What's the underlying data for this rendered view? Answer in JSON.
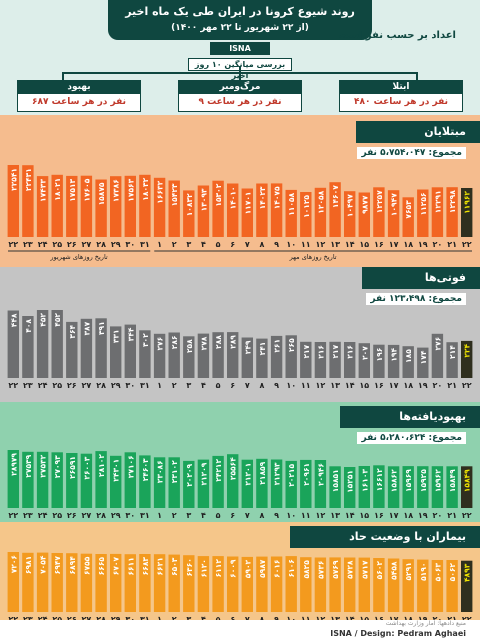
{
  "header": {
    "title": "روند شیوع کرونا در ایران طی یک ماه اخیر",
    "subtitle": "(از ۲۲ شهریور تا ۲۲ مهر ۱۴۰۰)",
    "agency": "ISNA",
    "cases_note": "اعداد بر حسب نفر است",
    "avg_label": "بررسی میانگین ۱۰ روز اخیر",
    "stats": [
      {
        "label": "ابتلا",
        "value": "۴۸۰ نفر در هر ساعت"
      },
      {
        "label": "مرگ‌ومیر",
        "value": "۹ نفر در هر ساعت"
      },
      {
        "label": "بهبود",
        "value": "۶۸۷ نفر در هر ساعت"
      }
    ]
  },
  "accent": {
    "dark": "#0f4740",
    "cases": "#f5bc8e",
    "deaths": "#b8b8b8",
    "recovered": "#8fd1ae",
    "hosp": "#f5c68a",
    "highlight": "#3a3a1a"
  },
  "sections": [
    {
      "title": "مبتلایان",
      "total": "مجموع: ۵،۷۵۴،۰۴۷ نفر",
      "axis_label_left": "تاریخ روزهای شهریور",
      "axis_label_right": "تاریخ روزهای مهر",
      "bar_color": "#f26522",
      "band_color": "#f5bc8e"
    },
    {
      "title": "فوتی‌ها",
      "total": "مجموع: ۱۲۳،۴۹۸ نفر",
      "bar_color": "#6d6e70",
      "band_color": "#c4c4c4"
    },
    {
      "title": "بهبودیافته‌ها",
      "total": "مجموع: ۵،۲۸۰،۶۲۴ نفر",
      "bar_color": "#1aa45a",
      "band_color": "#8fd1ae"
    },
    {
      "title": "بیماران با وضعیت حاد",
      "bar_color": "#f39a1e",
      "band_color": "#f5c68a"
    }
  ],
  "footer": {
    "source": "منبع دادهها: آمار وزارت بهداشت",
    "credit": "ISNA / Design: Pedram Aghaei"
  },
  "chart_data": [
    {
      "type": "bar",
      "title": "مبتلایان",
      "categories": [
        "۲۲",
        "۲۳",
        "۲۴",
        "۲۵",
        "۲۶",
        "۲۷",
        "۲۸",
        "۲۹",
        "۳۰",
        "۳۱",
        "۱",
        "۲",
        "۳",
        "۴",
        "۵",
        "۶",
        "۷",
        "۸",
        "۹",
        "۱۰",
        "۱۱",
        "۱۲",
        "۱۳",
        "۱۴",
        "۱۵",
        "۱۶",
        "۱۷",
        "۱۸",
        "۱۹",
        "۲۰",
        "۲۱",
        "۲۲"
      ],
      "values": [
        22541,
        22431,
        17433,
        18021,
        17513,
        17605,
        15875,
        17386,
        17563,
        18032,
        16632,
        15423,
        10832,
        13093,
        15302,
        14010,
        11701,
        14023,
        14075,
        11058,
        10125,
        12058,
        14607,
        10497,
        9877,
        12257,
        10947,
        7653,
        11256,
        12291,
        12298,
        11962
      ],
      "labels": [
        "۲۲۵۴۱",
        "۲۲۴۳۱",
        "۱۷۴۳۳",
        "۱۸۰۲۱",
        "۱۷۵۱۳",
        "۱۷۶۰۵",
        "۱۵۸۷۵",
        "۱۷۳۸۶",
        "۱۷۵۶۳",
        "۱۸۰۳۲",
        "۱۶۶۳۲",
        "۱۵۴۲۳",
        "۱۰۸۳۲",
        "۱۳۰۹۳",
        "۱۵۳۰۲",
        "۱۴۰۱۰",
        "۱۱۷۰۱",
        "۱۴۰۲۳",
        "۱۴۰۷۵",
        "۱۱۰۵۸",
        "۱۰۱۲۵",
        "۱۲۰۵۸",
        "۱۴۶۰۷",
        "۱۰۴۹۷",
        "۹۸۷۷",
        "۱۲۲۵۷",
        "۱۰۹۴۷",
        "۷۶۵۳",
        "۱۱۲۵۶",
        "۱۲۲۹۱",
        "۱۲۲۹۸",
        "۱۱۹۶۲"
      ]
    },
    {
      "type": "bar",
      "title": "فوتی‌ها",
      "categories": [
        "۲۲",
        "۲۳",
        "۲۴",
        "۲۵",
        "۲۶",
        "۲۷",
        "۲۸",
        "۲۹",
        "۳۰",
        "۳۱",
        "۱",
        "۲",
        "۳",
        "۴",
        "۵",
        "۶",
        "۷",
        "۸",
        "۹",
        "۱۰",
        "۱۱",
        "۱۲",
        "۱۳",
        "۱۴",
        "۱۵",
        "۱۶",
        "۱۷",
        "۱۸",
        "۱۹",
        "۲۰",
        "۲۱",
        "۲۲"
      ],
      "values": [
        448,
        408,
        452,
        452,
        364,
        387,
        391,
        331,
        344,
        302,
        276,
        286,
        258,
        278,
        288,
        289,
        249,
        241,
        261,
        265,
        217,
        216,
        217,
        216,
        207,
        196,
        194,
        185,
        174,
        276,
        214,
        224
      ],
      "labels": [
        "۴۴۸",
        "۴۰۸",
        "۴۵۲",
        "۴۵۲",
        "۳۶۴",
        "۳۸۷",
        "۳۹۱",
        "۳۳۱",
        "۳۴۴",
        "۳۰۲",
        "۲۷۶",
        "۲۸۶",
        "۲۵۸",
        "۲۷۸",
        "۲۸۸",
        "۲۸۹",
        "۲۴۹",
        "۲۴۱",
        "۲۶۱",
        "۲۶۵",
        "۲۱۷",
        "۲۱۶",
        "۲۱۷",
        "۲۱۶",
        "۲۰۷",
        "۱۹۶",
        "۱۹۴",
        "۱۸۵",
        "۱۷۴",
        "۲۷۶",
        "۲۱۴",
        "۲۲۴"
      ]
    },
    {
      "type": "bar",
      "title": "بهبودیافته‌ها",
      "categories": [
        "۲۲",
        "۲۳",
        "۲۴",
        "۲۵",
        "۲۶",
        "۲۷",
        "۲۸",
        "۲۹",
        "۳۰",
        "۳۱",
        "۱",
        "۲",
        "۳",
        "۴",
        "۵",
        "۶",
        "۷",
        "۸",
        "۹",
        "۱۰",
        "۱۱",
        "۱۲",
        "۱۳",
        "۱۴",
        "۱۵",
        "۱۶",
        "۱۷",
        "۱۸",
        "۱۹",
        "۲۰",
        "۲۱",
        "۲۲"
      ],
      "values": [
        28979,
        27539,
        27532,
        27093,
        26591,
        26003,
        28102,
        24301,
        27106,
        24603,
        23086,
        23102,
        20209,
        21209,
        24212,
        25564,
        21201,
        21859,
        21293,
        20215,
        20961,
        20946,
        15851,
        15251,
        16103,
        16612,
        15862,
        15969,
        15925,
        15962,
        15849,
        15849
      ],
      "labels": [
        "۲۸۹۷۹",
        "۲۷۵۳۹",
        "۲۷۵۳۲",
        "۲۷۰۹۳",
        "۲۶۵۹۱",
        "۲۶۰۰۳",
        "۲۸۱۰۲",
        "۲۴۳۰۱",
        "۲۷۱۰۶",
        "۲۴۶۰۳",
        "۲۳۰۸۶",
        "۲۳۱۰۲",
        "۲۰۲۰۹",
        "۲۱۲۰۹",
        "۲۴۲۱۲",
        "۲۵۵۶۴",
        "۲۱۲۰۱",
        "۲۱۸۵۹",
        "۲۱۲۹۳",
        "۲۰۲۱۵",
        "۲۰۹۶۱",
        "۲۰۹۴۶",
        "۱۵۸۵۱",
        "۱۵۲۵۱",
        "۱۶۱۰۳",
        "۱۶۶۱۲",
        "۱۵۸۶۲",
        "۱۵۹۶۹",
        "۱۵۹۲۵",
        "۱۵۹۶۲",
        "۱۵۸۴۹",
        "۱۵۸۴۹"
      ]
    },
    {
      "type": "bar",
      "title": "بیماران با وضعیت حاد",
      "categories": [
        "۲۲",
        "۲۳",
        "۲۴",
        "۲۵",
        "۲۶",
        "۲۷",
        "۲۸",
        "۲۹",
        "۳۰",
        "۳۱",
        "۱",
        "۲",
        "۳",
        "۴",
        "۵",
        "۶",
        "۷",
        "۸",
        "۹",
        "۱۰",
        "۱۱",
        "۱۲",
        "۱۳",
        "۱۴",
        "۱۵",
        "۱۶",
        "۱۷",
        "۱۸",
        "۱۹",
        "۲۰",
        "۲۱",
        "۲۲"
      ],
      "values": [
        7206,
        6981,
        7054,
        6947,
        6894,
        6755,
        6665,
        6707,
        6611,
        6683,
        6621,
        6503,
        6360,
        6120,
        6112,
        6009,
        5902,
        5987,
        6016,
        6106,
        5825,
        5736,
        5769,
        5728,
        5717,
        5602,
        5458,
        5291,
        5190,
        5063,
        5062,
        4893
      ],
      "labels": [
        "۷۲۰۶",
        "۶۹۸۱",
        "۷۰۵۴",
        "۶۹۴۷",
        "۶۸۹۴",
        "۶۷۵۵",
        "۶۶۶۵",
        "۶۷۰۷",
        "۶۶۱۱",
        "۶۶۸۳",
        "۶۶۲۱",
        "۶۵۰۳",
        "۶۳۶۰",
        "۶۱۲۰",
        "۶۱۱۲",
        "۶۰۰۹",
        "۵۹۰۲",
        "۵۹۸۷",
        "۶۰۱۶",
        "۶۱۰۶",
        "۵۸۲۵",
        "۵۷۳۶",
        "۵۷۶۹",
        "۵۷۲۸",
        "۵۷۱۷",
        "۵۶۰۲",
        "۵۴۵۸",
        "۵۲۹۱",
        "۵۱۹۰",
        "۵۰۶۳",
        "۵۰۶۲",
        "۴۸۹۳"
      ]
    }
  ]
}
